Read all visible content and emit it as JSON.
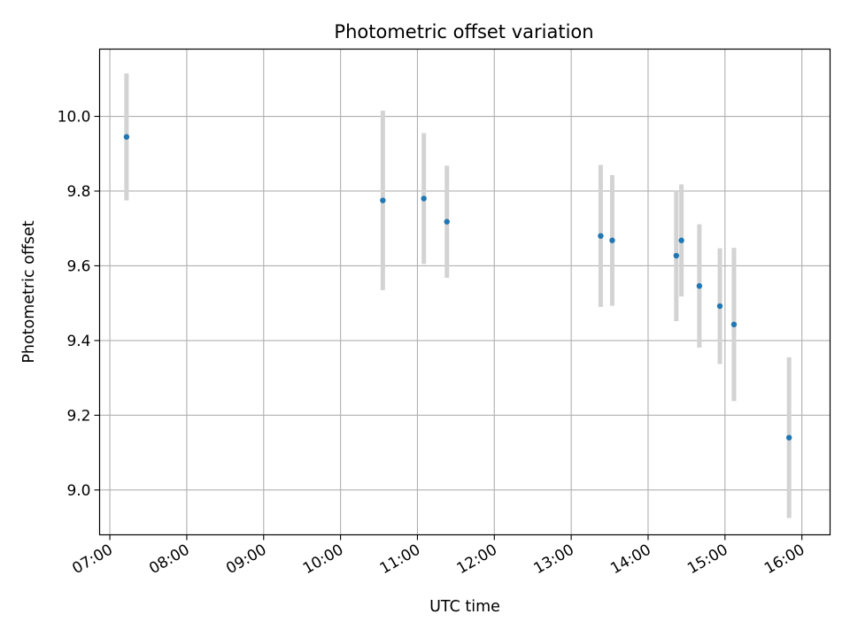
{
  "chart_data": {
    "type": "scatter",
    "title": "Photometric offset variation",
    "xlabel": "UTC time",
    "ylabel": "Photometric offset",
    "xlim": [
      "06:52",
      "16:22"
    ],
    "ylim": [
      8.88,
      10.18
    ],
    "x_ticks": [
      "07:00",
      "08:00",
      "09:00",
      "10:00",
      "11:00",
      "12:00",
      "13:00",
      "14:00",
      "15:00",
      "16:00"
    ],
    "y_ticks": [
      "9.0",
      "9.2",
      "9.4",
      "9.6",
      "9.8",
      "10.0"
    ],
    "y_tick_values": [
      9.0,
      9.2,
      9.4,
      9.6,
      9.8,
      10.0
    ],
    "grid": true,
    "marker_color": "#1f77b4",
    "errorbar_color": "#d3d3d3",
    "series": [
      {
        "points": [
          {
            "time": "07:13",
            "y": 9.945,
            "err": 0.17
          },
          {
            "time": "10:33",
            "y": 9.775,
            "err": 0.24
          },
          {
            "time": "11:05",
            "y": 9.78,
            "err": 0.175
          },
          {
            "time": "11:23",
            "y": 9.718,
            "err": 0.15
          },
          {
            "time": "13:23",
            "y": 9.68,
            "err": 0.19
          },
          {
            "time": "13:32",
            "y": 9.668,
            "err": 0.175
          },
          {
            "time": "14:22",
            "y": 9.627,
            "err": 0.175
          },
          {
            "time": "14:26",
            "y": 9.668,
            "err": 0.15
          },
          {
            "time": "14:40",
            "y": 9.546,
            "err": 0.165
          },
          {
            "time": "14:56",
            "y": 9.492,
            "err": 0.155
          },
          {
            "time": "15:07",
            "y": 9.443,
            "err": 0.205
          },
          {
            "time": "15:50",
            "y": 9.14,
            "err": 0.215
          }
        ]
      }
    ]
  }
}
